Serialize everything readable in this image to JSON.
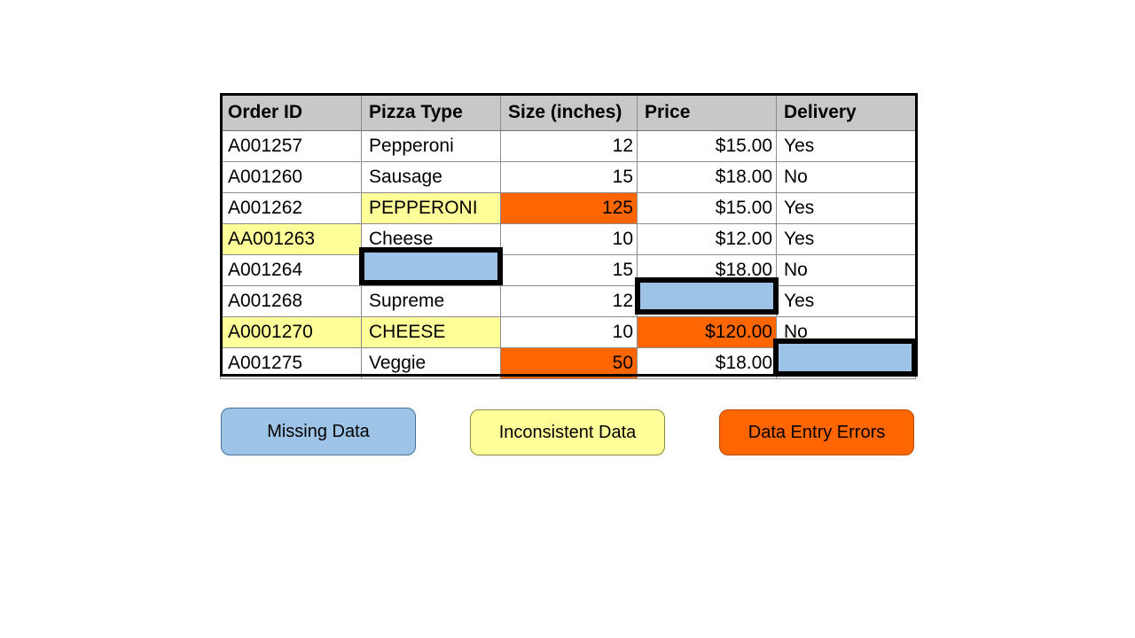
{
  "table": {
    "headers": [
      "Order ID",
      "Pizza Type",
      "Size (inches)",
      "Price",
      "Delivery"
    ],
    "rows": [
      [
        "A001257",
        "Pepperoni",
        "12",
        "$15.00",
        "Yes"
      ],
      [
        "A001260",
        "Sausage",
        "15",
        "$18.00",
        "No"
      ],
      [
        "A001262",
        "PEPPERONI",
        "125",
        "$15.00",
        "Yes"
      ],
      [
        "AA001263",
        "Cheese",
        "10",
        "$12.00",
        "Yes"
      ],
      [
        "A001264",
        "",
        "15",
        "$18.00",
        "No"
      ],
      [
        "A001268",
        "Supreme",
        "12",
        "",
        "Yes"
      ],
      [
        "A0001270",
        "CHEESE",
        "10",
        "$120.00",
        "No"
      ],
      [
        "A001275",
        "Veggie",
        "50",
        "$18.00",
        ""
      ]
    ]
  },
  "legend": {
    "missing_label": "Missing Data",
    "inconsistent_label": "Inconsistent Data",
    "errors_label": "Data Entry Errors"
  },
  "colors": {
    "missing": "#9dc3e6",
    "inconsistent": "#ffff99",
    "entry_error": "#ff6600",
    "header_background": "#c8c8c8"
  }
}
